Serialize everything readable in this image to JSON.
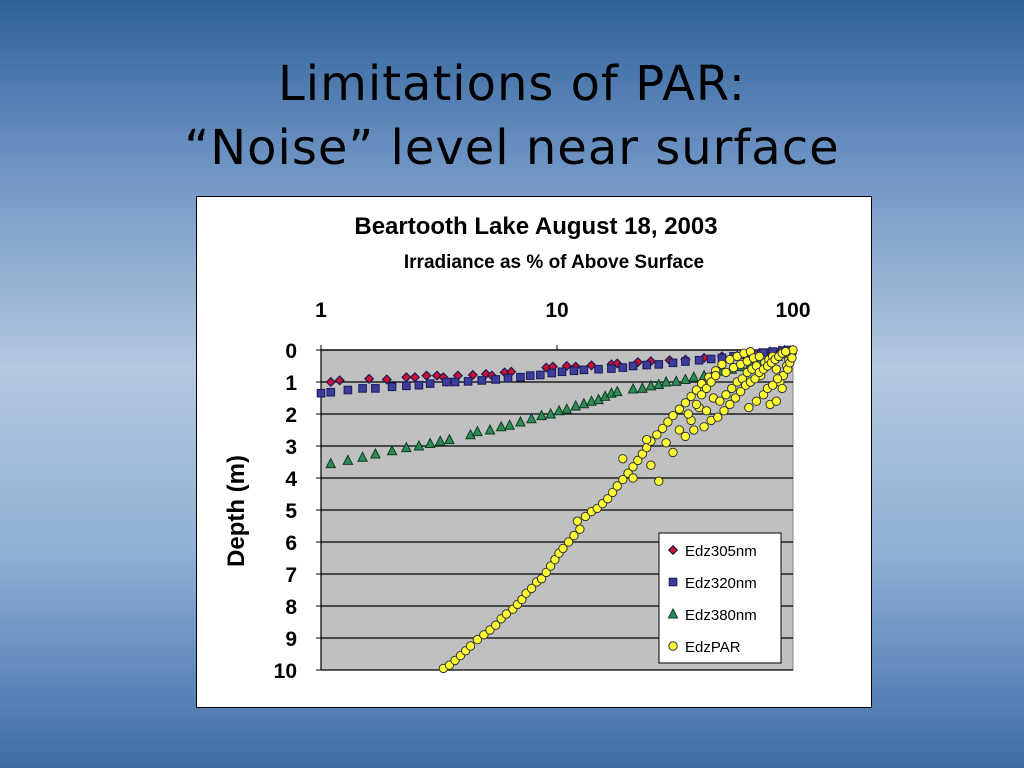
{
  "slide": {
    "title_line1": "Limitations of PAR:",
    "title_line2": "“Noise” level near surface"
  },
  "colors": {
    "background_top": "#2f619a",
    "background_middle": "#b4c8df",
    "plot_area": "#c0c0c0",
    "Edz305nm": "#d0102a",
    "Edz320nm": "#3c3c9a",
    "Edz380nm": "#2e8b57",
    "EdzPAR": "#ffff33"
  },
  "chart_data": {
    "type": "scatter",
    "title": "Beartooth Lake August 18, 2003",
    "subtitle": "Irradiance as % of Above Surface",
    "xlabel": "",
    "ylabel": "Depth (m)",
    "x_scale": "log",
    "x_axis_position": "top",
    "y_reversed": true,
    "xlim": [
      1,
      100
    ],
    "ylim": [
      0,
      10
    ],
    "x_ticks": [
      "1",
      "10",
      "100"
    ],
    "y_ticks": [
      "0",
      "1",
      "2",
      "3",
      "4",
      "5",
      "6",
      "7",
      "8",
      "9",
      "10"
    ],
    "grid": "horizontal",
    "legend_position": "bottom-right",
    "series": [
      {
        "name": "Edz305nm",
        "marker": "diamond",
        "points": [
          [
            1.1,
            1.0
          ],
          [
            1.2,
            0.95
          ],
          [
            1.6,
            0.9
          ],
          [
            1.9,
            0.92
          ],
          [
            2.3,
            0.85
          ],
          [
            2.5,
            0.85
          ],
          [
            2.8,
            0.8
          ],
          [
            3.1,
            0.8
          ],
          [
            3.3,
            0.85
          ],
          [
            3.8,
            0.8
          ],
          [
            4.4,
            0.78
          ],
          [
            5.0,
            0.75
          ],
          [
            5.3,
            0.8
          ],
          [
            6.0,
            0.7
          ],
          [
            6.4,
            0.68
          ],
          [
            9.0,
            0.55
          ],
          [
            9.6,
            0.52
          ],
          [
            11,
            0.5
          ],
          [
            12,
            0.52
          ],
          [
            14,
            0.48
          ],
          [
            17,
            0.45
          ],
          [
            18,
            0.42
          ],
          [
            22,
            0.38
          ],
          [
            25,
            0.35
          ],
          [
            30,
            0.32
          ],
          [
            35,
            0.3
          ],
          [
            42,
            0.25
          ],
          [
            50,
            0.2
          ],
          [
            58,
            0.18
          ],
          [
            65,
            0.12
          ],
          [
            72,
            0.1
          ],
          [
            80,
            0.05
          ],
          [
            88,
            0.02
          ],
          [
            92,
            0.0
          ]
        ]
      },
      {
        "name": "Edz320nm",
        "marker": "square",
        "points": [
          [
            1.0,
            1.35
          ],
          [
            1.1,
            1.32
          ],
          [
            1.3,
            1.25
          ],
          [
            1.5,
            1.2
          ],
          [
            1.7,
            1.2
          ],
          [
            2.0,
            1.15
          ],
          [
            2.3,
            1.12
          ],
          [
            2.6,
            1.1
          ],
          [
            2.9,
            1.05
          ],
          [
            3.4,
            1.0
          ],
          [
            3.7,
            1.0
          ],
          [
            4.2,
            0.98
          ],
          [
            4.8,
            0.95
          ],
          [
            5.5,
            0.92
          ],
          [
            6.2,
            0.88
          ],
          [
            7.0,
            0.85
          ],
          [
            7.7,
            0.8
          ],
          [
            8.5,
            0.78
          ],
          [
            9.5,
            0.72
          ],
          [
            10.5,
            0.68
          ],
          [
            11.8,
            0.65
          ],
          [
            13,
            0.62
          ],
          [
            15,
            0.6
          ],
          [
            17,
            0.58
          ],
          [
            19,
            0.55
          ],
          [
            21,
            0.5
          ],
          [
            24,
            0.47
          ],
          [
            27,
            0.45
          ],
          [
            31,
            0.4
          ],
          [
            35,
            0.36
          ],
          [
            40,
            0.32
          ],
          [
            45,
            0.28
          ],
          [
            50,
            0.25
          ],
          [
            56,
            0.2
          ],
          [
            62,
            0.15
          ],
          [
            68,
            0.12
          ],
          [
            75,
            0.08
          ],
          [
            82,
            0.05
          ],
          [
            90,
            0.02
          ],
          [
            96,
            0.0
          ]
        ]
      },
      {
        "name": "Edz380nm",
        "marker": "triangle",
        "points": [
          [
            1.1,
            3.55
          ],
          [
            1.3,
            3.45
          ],
          [
            1.5,
            3.35
          ],
          [
            1.7,
            3.25
          ],
          [
            2.0,
            3.15
          ],
          [
            2.3,
            3.05
          ],
          [
            2.6,
            3.0
          ],
          [
            2.9,
            2.92
          ],
          [
            3.2,
            2.85
          ],
          [
            3.5,
            2.8
          ],
          [
            4.3,
            2.65
          ],
          [
            4.6,
            2.55
          ],
          [
            5.2,
            2.5
          ],
          [
            5.8,
            2.4
          ],
          [
            6.3,
            2.35
          ],
          [
            7.0,
            2.25
          ],
          [
            7.8,
            2.15
          ],
          [
            8.6,
            2.05
          ],
          [
            9.4,
            2.0
          ],
          [
            10.2,
            1.9
          ],
          [
            11,
            1.85
          ],
          [
            12,
            1.75
          ],
          [
            13,
            1.68
          ],
          [
            14,
            1.6
          ],
          [
            15,
            1.55
          ],
          [
            16,
            1.45
          ],
          [
            17,
            1.35
          ],
          [
            18,
            1.3
          ],
          [
            21,
            1.22
          ],
          [
            23,
            1.2
          ],
          [
            25,
            1.12
          ],
          [
            27,
            1.08
          ],
          [
            29,
            1.0
          ],
          [
            32,
            0.98
          ],
          [
            35,
            0.92
          ],
          [
            38,
            0.85
          ],
          [
            42,
            0.8
          ],
          [
            46,
            0.72
          ],
          [
            50,
            0.66
          ],
          [
            55,
            0.6
          ],
          [
            60,
            0.52
          ],
          [
            66,
            0.44
          ],
          [
            72,
            0.36
          ],
          [
            79,
            0.28
          ],
          [
            86,
            0.2
          ],
          [
            92,
            0.12
          ],
          [
            97,
            0.05
          ]
        ]
      },
      {
        "name": "EdzPAR",
        "marker": "circle",
        "points": [
          [
            3.3,
            9.95
          ],
          [
            3.5,
            9.85
          ],
          [
            3.7,
            9.7
          ],
          [
            3.9,
            9.55
          ],
          [
            4.1,
            9.4
          ],
          [
            4.3,
            9.25
          ],
          [
            4.6,
            9.05
          ],
          [
            4.9,
            8.9
          ],
          [
            5.2,
            8.75
          ],
          [
            5.5,
            8.6
          ],
          [
            5.8,
            8.4
          ],
          [
            6.1,
            8.25
          ],
          [
            6.5,
            8.1
          ],
          [
            6.8,
            7.95
          ],
          [
            7.1,
            7.8
          ],
          [
            7.4,
            7.6
          ],
          [
            7.8,
            7.45
          ],
          [
            8.2,
            7.25
          ],
          [
            8.6,
            7.15
          ],
          [
            9.0,
            6.95
          ],
          [
            9.4,
            6.75
          ],
          [
            9.8,
            6.55
          ],
          [
            10.2,
            6.35
          ],
          [
            10.6,
            6.2
          ],
          [
            11.2,
            6.0
          ],
          [
            11.8,
            5.8
          ],
          [
            12.5,
            5.6
          ],
          [
            12.2,
            5.35
          ],
          [
            13.2,
            5.2
          ],
          [
            14,
            5.05
          ],
          [
            14.8,
            4.95
          ],
          [
            15.6,
            4.8
          ],
          [
            16.4,
            4.65
          ],
          [
            17.2,
            4.45
          ],
          [
            18,
            4.25
          ],
          [
            19,
            4.05
          ],
          [
            20,
            3.85
          ],
          [
            21,
            3.65
          ],
          [
            22,
            3.45
          ],
          [
            23,
            3.25
          ],
          [
            24,
            3.05
          ],
          [
            25,
            2.85
          ],
          [
            26.5,
            2.65
          ],
          [
            28,
            2.45
          ],
          [
            29.5,
            2.25
          ],
          [
            31,
            2.05
          ],
          [
            33,
            1.85
          ],
          [
            35,
            1.65
          ],
          [
            37,
            1.45
          ],
          [
            39,
            1.25
          ],
          [
            41,
            1.05
          ],
          [
            44,
            0.85
          ],
          [
            47,
            0.65
          ],
          [
            50,
            0.45
          ],
          [
            54,
            0.3
          ],
          [
            58,
            0.2
          ],
          [
            62,
            0.1
          ],
          [
            66,
            0.05
          ],
          [
            19,
            3.4
          ],
          [
            21,
            4.0
          ],
          [
            24,
            2.8
          ],
          [
            25,
            3.6
          ],
          [
            27,
            4.1
          ],
          [
            29,
            2.9
          ],
          [
            31,
            3.2
          ],
          [
            33,
            2.5
          ],
          [
            35,
            2.7
          ],
          [
            37,
            2.2
          ],
          [
            40,
            1.8
          ],
          [
            43,
            1.9
          ],
          [
            46,
            1.5
          ],
          [
            49,
            1.6
          ],
          [
            52,
            1.4
          ],
          [
            55,
            1.2
          ],
          [
            58,
            1.0
          ],
          [
            61,
            0.9
          ],
          [
            64,
            0.7
          ],
          [
            67,
            0.6
          ],
          [
            70,
            0.5
          ],
          [
            73,
            0.8
          ],
          [
            76,
            0.4
          ],
          [
            79,
            0.3
          ],
          [
            82,
            0.2
          ],
          [
            85,
            0.6
          ],
          [
            88,
            1.0
          ],
          [
            91,
            0.8
          ],
          [
            94,
            0.5
          ],
          [
            96,
            0.3
          ],
          [
            98,
            0.2
          ],
          [
            99,
            0.1
          ],
          [
            100,
            0.0
          ],
          [
            80,
            1.7
          ],
          [
            85,
            1.6
          ],
          [
            90,
            1.2
          ],
          [
            38,
            2.5
          ],
          [
            42,
            2.4
          ],
          [
            45,
            2.2
          ],
          [
            48,
            2.1
          ],
          [
            51,
            1.9
          ],
          [
            54,
            1.7
          ],
          [
            57,
            1.5
          ],
          [
            60,
            1.3
          ],
          [
            63,
            1.1
          ],
          [
            66,
            1.0
          ],
          [
            69,
            0.9
          ],
          [
            72,
            0.7
          ],
          [
            75,
            0.6
          ],
          [
            78,
            0.5
          ],
          [
            81,
            0.4
          ],
          [
            84,
            0.3
          ],
          [
            87,
            0.2
          ],
          [
            90,
            0.1
          ],
          [
            93,
            0.05
          ],
          [
            95,
            0.6
          ],
          [
            97,
            0.4
          ],
          [
            99,
            0.25
          ],
          [
            65,
            1.8
          ],
          [
            70,
            1.6
          ],
          [
            75,
            1.4
          ],
          [
            78,
            1.2
          ],
          [
            82,
            1.1
          ],
          [
            86,
            0.9
          ],
          [
            36,
            2.0
          ],
          [
            39,
            1.7
          ],
          [
            41,
            1.4
          ],
          [
            43,
            1.2
          ],
          [
            45,
            1.0
          ],
          [
            47,
            0.8
          ],
          [
            52,
            0.7
          ],
          [
            56,
            0.55
          ],
          [
            60,
            0.45
          ],
          [
            64,
            0.35
          ],
          [
            68,
            0.25
          ],
          [
            72,
            0.2
          ]
        ]
      }
    ]
  }
}
